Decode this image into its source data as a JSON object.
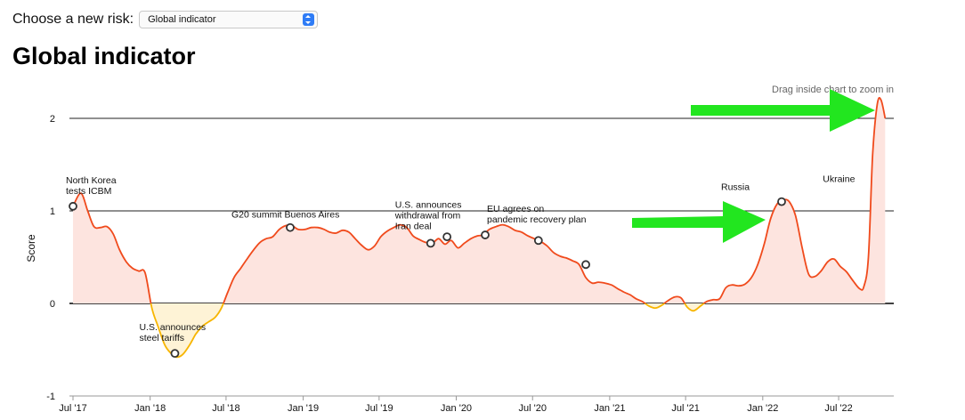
{
  "header": {
    "risk_label": "Choose a new risk:",
    "risk_select_value": "Global indicator",
    "title": "Global indicator"
  },
  "hint": "Drag inside chart to zoom in",
  "colors": {
    "positive_line": "#f04a1c",
    "negative_line": "#f7b500",
    "positive_fill": "#fde4df",
    "negative_fill": "#fef3d6",
    "arrow": "#22e61f"
  },
  "chart_data": {
    "type": "area",
    "title": "Global indicator",
    "ylabel": "Score",
    "xlabel": "",
    "ylim": [
      -1,
      2.2
    ],
    "xlim": [
      "2017-07-01",
      "2022-11-01"
    ],
    "yticks": [
      -1,
      0,
      1,
      2
    ],
    "xticks": [
      {
        "date": "2017-07-01",
        "label": "Jul '17"
      },
      {
        "date": "2018-01-01",
        "label": "Jan '18"
      },
      {
        "date": "2018-07-01",
        "label": "Jul '18"
      },
      {
        "date": "2019-01-01",
        "label": "Jan '19"
      },
      {
        "date": "2019-07-01",
        "label": "Jul '19"
      },
      {
        "date": "2020-01-01",
        "label": "Jan '20"
      },
      {
        "date": "2020-07-01",
        "label": "Jul '20"
      },
      {
        "date": "2021-01-01",
        "label": "Jan '21"
      },
      {
        "date": "2021-07-01",
        "label": "Jul '21"
      },
      {
        "date": "2022-01-01",
        "label": "Jan '22"
      },
      {
        "date": "2022-07-01",
        "label": "Jul '22"
      }
    ],
    "series": [
      {
        "values": [
          [
            "2017-07-01",
            1.05
          ],
          [
            "2017-07-20",
            1.19
          ],
          [
            "2017-08-05",
            1.0
          ],
          [
            "2017-08-20",
            0.83
          ],
          [
            "2017-09-05",
            0.82
          ],
          [
            "2017-09-20",
            0.83
          ],
          [
            "2017-10-05",
            0.75
          ],
          [
            "2017-10-20",
            0.58
          ],
          [
            "2017-11-05",
            0.45
          ],
          [
            "2017-11-20",
            0.38
          ],
          [
            "2017-12-05",
            0.35
          ],
          [
            "2017-12-20",
            0.33
          ],
          [
            "2018-01-05",
            -0.05
          ],
          [
            "2018-01-20",
            -0.25
          ],
          [
            "2018-02-05",
            -0.45
          ],
          [
            "2018-02-20",
            -0.54
          ],
          [
            "2018-03-05",
            -0.58
          ],
          [
            "2018-03-20",
            -0.55
          ],
          [
            "2018-04-05",
            -0.45
          ],
          [
            "2018-04-20",
            -0.33
          ],
          [
            "2018-05-05",
            -0.25
          ],
          [
            "2018-05-20",
            -0.2
          ],
          [
            "2018-06-05",
            -0.15
          ],
          [
            "2018-06-20",
            -0.05
          ],
          [
            "2018-07-05",
            0.12
          ],
          [
            "2018-07-20",
            0.28
          ],
          [
            "2018-08-05",
            0.38
          ],
          [
            "2018-08-20",
            0.48
          ],
          [
            "2018-09-05",
            0.58
          ],
          [
            "2018-09-20",
            0.66
          ],
          [
            "2018-10-05",
            0.7
          ],
          [
            "2018-10-20",
            0.72
          ],
          [
            "2018-11-05",
            0.8
          ],
          [
            "2018-11-20",
            0.84
          ],
          [
            "2018-12-05",
            0.84
          ],
          [
            "2018-12-20",
            0.8
          ],
          [
            "2019-01-05",
            0.8
          ],
          [
            "2019-01-20",
            0.82
          ],
          [
            "2019-02-05",
            0.82
          ],
          [
            "2019-02-20",
            0.8
          ],
          [
            "2019-03-05",
            0.77
          ],
          [
            "2019-03-20",
            0.76
          ],
          [
            "2019-04-05",
            0.79
          ],
          [
            "2019-04-20",
            0.77
          ],
          [
            "2019-05-05",
            0.7
          ],
          [
            "2019-05-20",
            0.63
          ],
          [
            "2019-06-05",
            0.58
          ],
          [
            "2019-06-20",
            0.62
          ],
          [
            "2019-07-05",
            0.72
          ],
          [
            "2019-07-20",
            0.78
          ],
          [
            "2019-08-05",
            0.82
          ],
          [
            "2019-08-20",
            0.85
          ],
          [
            "2019-09-05",
            0.82
          ],
          [
            "2019-09-20",
            0.73
          ],
          [
            "2019-10-05",
            0.69
          ],
          [
            "2019-10-20",
            0.66
          ],
          [
            "2019-11-05",
            0.65
          ],
          [
            "2019-11-20",
            0.7
          ],
          [
            "2019-12-05",
            0.64
          ],
          [
            "2019-12-20",
            0.68
          ],
          [
            "2020-01-05",
            0.6
          ],
          [
            "2020-01-20",
            0.65
          ],
          [
            "2020-02-05",
            0.7
          ],
          [
            "2020-02-20",
            0.73
          ],
          [
            "2020-03-05",
            0.74
          ],
          [
            "2020-03-20",
            0.8
          ],
          [
            "2020-04-05",
            0.83
          ],
          [
            "2020-04-20",
            0.85
          ],
          [
            "2020-05-05",
            0.83
          ],
          [
            "2020-05-20",
            0.79
          ],
          [
            "2020-06-05",
            0.77
          ],
          [
            "2020-06-20",
            0.73
          ],
          [
            "2020-07-05",
            0.7
          ],
          [
            "2020-07-20",
            0.67
          ],
          [
            "2020-08-05",
            0.62
          ],
          [
            "2020-08-20",
            0.55
          ],
          [
            "2020-09-05",
            0.51
          ],
          [
            "2020-09-20",
            0.49
          ],
          [
            "2020-10-05",
            0.46
          ],
          [
            "2020-10-20",
            0.42
          ],
          [
            "2020-11-05",
            0.28
          ],
          [
            "2020-11-20",
            0.22
          ],
          [
            "2020-12-05",
            0.23
          ],
          [
            "2020-12-20",
            0.22
          ],
          [
            "2021-01-05",
            0.2
          ],
          [
            "2021-01-20",
            0.16
          ],
          [
            "2021-02-05",
            0.12
          ],
          [
            "2021-02-20",
            0.09
          ],
          [
            "2021-03-05",
            0.05
          ],
          [
            "2021-03-20",
            0.02
          ],
          [
            "2021-04-05",
            -0.03
          ],
          [
            "2021-04-20",
            -0.05
          ],
          [
            "2021-05-05",
            -0.02
          ],
          [
            "2021-05-20",
            0.03
          ],
          [
            "2021-06-05",
            0.07
          ],
          [
            "2021-06-20",
            0.06
          ],
          [
            "2021-07-05",
            -0.04
          ],
          [
            "2021-07-20",
            -0.08
          ],
          [
            "2021-08-05",
            -0.03
          ],
          [
            "2021-08-20",
            0.02
          ],
          [
            "2021-09-05",
            0.04
          ],
          [
            "2021-09-20",
            0.05
          ],
          [
            "2021-10-05",
            0.17
          ],
          [
            "2021-10-20",
            0.2
          ],
          [
            "2021-11-05",
            0.19
          ],
          [
            "2021-11-20",
            0.21
          ],
          [
            "2021-12-05",
            0.28
          ],
          [
            "2021-12-20",
            0.42
          ],
          [
            "2022-01-05",
            0.65
          ],
          [
            "2022-01-20",
            0.92
          ],
          [
            "2022-02-05",
            1.08
          ],
          [
            "2022-02-20",
            1.12
          ],
          [
            "2022-03-05",
            1.1
          ],
          [
            "2022-03-20",
            0.95
          ],
          [
            "2022-04-05",
            0.6
          ],
          [
            "2022-04-20",
            0.32
          ],
          [
            "2022-05-05",
            0.29
          ],
          [
            "2022-05-20",
            0.35
          ],
          [
            "2022-06-05",
            0.45
          ],
          [
            "2022-06-20",
            0.48
          ],
          [
            "2022-07-05",
            0.4
          ],
          [
            "2022-07-20",
            0.34
          ],
          [
            "2022-08-05",
            0.24
          ],
          [
            "2022-08-20",
            0.16
          ],
          [
            "2022-08-30",
            0.18
          ],
          [
            "2022-09-10",
            0.5
          ],
          [
            "2022-09-20",
            1.6
          ],
          [
            "2022-10-01",
            2.15
          ],
          [
            "2022-10-10",
            2.2
          ],
          [
            "2022-10-20",
            2.0
          ]
        ]
      }
    ],
    "annotations": [
      {
        "date": "2017-07-01",
        "value": 1.05,
        "lines": [
          "North Korea",
          "tests ICBM"
        ],
        "marker": true
      },
      {
        "date": "2018-03-01",
        "value": -0.54,
        "lines": [
          "U.S. announces",
          "steel tariffs"
        ],
        "marker": true
      },
      {
        "date": "2018-12-01",
        "value": 0.82,
        "lines": [
          "G20 summit Buenos Aires"
        ],
        "marker": true
      },
      {
        "date": "2019-11-01",
        "value": 0.65,
        "lines": [
          "U.S. announces",
          "withdrawal from",
          "Iran deal"
        ],
        "marker": true
      },
      {
        "date": "2019-12-10",
        "value": 0.72,
        "lines": [],
        "marker": true
      },
      {
        "date": "2020-03-10",
        "value": 0.74,
        "lines": [
          "EU agrees on",
          "pandemic recovery plan"
        ],
        "marker": true
      },
      {
        "date": "2020-07-15",
        "value": 0.68,
        "lines": [],
        "marker": true
      },
      {
        "date": "2020-11-05",
        "value": 0.42,
        "lines": [],
        "marker": true
      },
      {
        "date": "2022-02-15",
        "value": 1.1,
        "lines": [
          "Russia"
        ],
        "marker": true
      },
      {
        "date": "2022-03-30",
        "value": 1.1,
        "lines": [
          "Ukraine"
        ],
        "marker": false
      }
    ],
    "grid": true,
    "legend": "none"
  }
}
